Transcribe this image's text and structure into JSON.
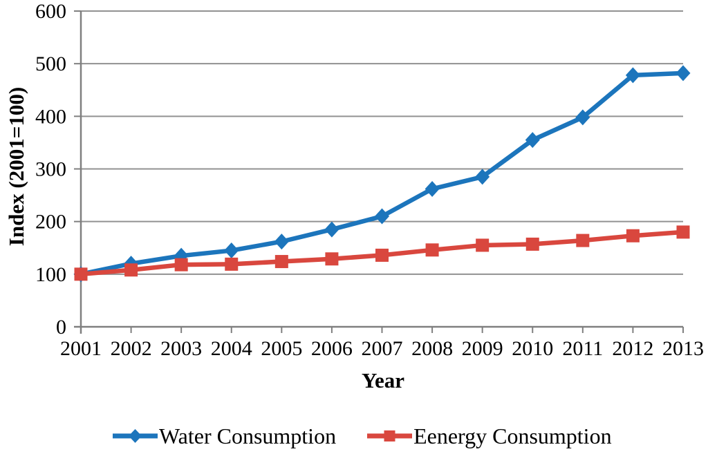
{
  "figure": {
    "background": "#FFFFFF"
  },
  "chart_data": {
    "type": "line",
    "title": "",
    "xlabel": "Year",
    "ylabel": "Index (2001=100)",
    "categories": [
      "2001",
      "2002",
      "2003",
      "2004",
      "2005",
      "2006",
      "2007",
      "2008",
      "2009",
      "2010",
      "2011",
      "2012",
      "2013"
    ],
    "ylim": [
      0,
      600
    ],
    "yticks": [
      0,
      100,
      200,
      300,
      400,
      500,
      600
    ],
    "grid": "horizontal",
    "legend_position": "bottom-center",
    "axis_color": "#7F7F7F",
    "grid_color": "#919191",
    "text_color": "#000000",
    "series": [
      {
        "name": "Water Consumption",
        "marker": "diamond",
        "color": "#1C75BC",
        "values": [
          100,
          120,
          135,
          145,
          162,
          185,
          210,
          262,
          285,
          355,
          398,
          478,
          482
        ]
      },
      {
        "name": "Eenergy Consumption",
        "marker": "square",
        "color": "#D9473E",
        "values": [
          100,
          108,
          118,
          119,
          124,
          129,
          136,
          146,
          155,
          157,
          164,
          173,
          180
        ]
      }
    ]
  }
}
